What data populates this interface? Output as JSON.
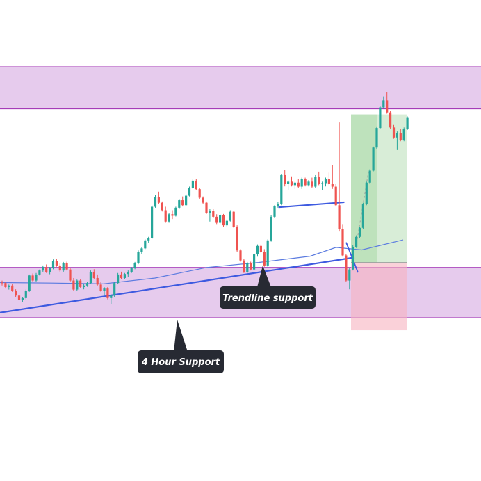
{
  "chart_data": {
    "type": "candlestick",
    "title": "",
    "xlabel": "",
    "ylabel": "",
    "ylim": [
      0,
      100
    ],
    "grid": false,
    "colors": {
      "up": "#26a69a",
      "down": "#ef5350",
      "zone_fill": "#e6cbed",
      "zone_border": "#9c27b0",
      "trendline": "#3d5ae0",
      "moving_average": "#5b7be0",
      "target_zone": "#a9d8a6",
      "stop_zone": "#f6b3bf",
      "callout_bg": "#272a33",
      "callout_text": "#ffffff"
    },
    "zones": [
      {
        "name": "resistance-zone",
        "from": 83.2,
        "to": 100.0
      },
      {
        "name": "support-zone",
        "from": 0.0,
        "to": 20.0
      }
    ],
    "annotations": [
      {
        "name": "trendline-support-label",
        "text": "Trendline support"
      },
      {
        "name": "four-hour-support-label",
        "text": "4 Hour Support"
      }
    ],
    "trendline": {
      "from": [
        0,
        2.0
      ],
      "to": [
        140,
        24.0
      ]
    },
    "short_trendline": {
      "from": [
        110,
        44.0
      ],
      "to": [
        136,
        46.0
      ]
    },
    "position": {
      "entry": 22.0,
      "target": 81.0,
      "stop": -5.0
    },
    "moving_average": [
      {
        "x": 0,
        "y": 14.0
      },
      {
        "x": 20,
        "y": 13.8
      },
      {
        "x": 40,
        "y": 13.5
      },
      {
        "x": 60,
        "y": 15.8
      },
      {
        "x": 80,
        "y": 20.0
      },
      {
        "x": 100,
        "y": 22.0
      },
      {
        "x": 120,
        "y": 24.5
      },
      {
        "x": 130,
        "y": 28.0
      },
      {
        "x": 140,
        "y": 27.0
      },
      {
        "x": 156,
        "y": 31.0
      }
    ],
    "candles": [
      [
        14,
        14.8,
        12.8,
        13.8
      ],
      [
        13.8,
        14.3,
        11.6,
        12.2
      ],
      [
        12.2,
        13.2,
        11.2,
        12.8
      ],
      [
        12.8,
        13.3,
        10.3,
        10.8
      ],
      [
        10.8,
        11.3,
        8.3,
        8.8
      ],
      [
        8.8,
        9.3,
        6.6,
        7.2
      ],
      [
        7.2,
        8.2,
        6.2,
        7.8
      ],
      [
        7.8,
        11.2,
        7.3,
        10.8
      ],
      [
        10.8,
        17.2,
        10.3,
        16.8
      ],
      [
        16.8,
        17.6,
        14.3,
        14.8
      ],
      [
        14.8,
        17.8,
        14.3,
        17.2
      ],
      [
        17.2,
        19.2,
        16.8,
        18.8
      ],
      [
        18.8,
        20.8,
        18.3,
        20.2
      ],
      [
        20.2,
        21.2,
        17.8,
        18.2
      ],
      [
        18.2,
        20.2,
        17.3,
        19.8
      ],
      [
        19.8,
        23.2,
        19.3,
        22.5
      ],
      [
        22.5,
        23.4,
        20.3,
        20.8
      ],
      [
        20.8,
        21.8,
        18.3,
        18.8
      ],
      [
        18.8,
        22.2,
        18.3,
        21.8
      ],
      [
        21.8,
        22.3,
        18.8,
        19.2
      ],
      [
        19.2,
        19.8,
        14.3,
        14.8
      ],
      [
        14.8,
        15.8,
        10.8,
        11.2
      ],
      [
        11.2,
        15.2,
        10.8,
        14.8
      ],
      [
        14.8,
        15.3,
        11.8,
        12.2
      ],
      [
        12.2,
        13.3,
        11.3,
        12.8
      ],
      [
        12.8,
        14.2,
        12.3,
        13.8
      ],
      [
        13.8,
        18.8,
        13.3,
        18.2
      ],
      [
        18.2,
        19.3,
        15.3,
        15.8
      ],
      [
        15.8,
        17.2,
        12.8,
        13.2
      ],
      [
        13.2,
        14.2,
        10.3,
        10.8
      ],
      [
        10.8,
        12.2,
        8.8,
        11.6
      ],
      [
        11.6,
        12.2,
        7.3,
        7.8
      ],
      [
        7.8,
        9.2,
        5.3,
        8.8
      ],
      [
        8.8,
        14.2,
        8.3,
        13.8
      ],
      [
        13.8,
        17.8,
        13.3,
        17.2
      ],
      [
        17.2,
        18.3,
        15.3,
        15.8
      ],
      [
        15.8,
        17.8,
        15.3,
        17.4
      ],
      [
        17.4,
        18.8,
        16.3,
        18.2
      ],
      [
        18.2,
        20.2,
        17.8,
        19.8
      ],
      [
        19.8,
        22.2,
        19.3,
        21.8
      ],
      [
        21.8,
        26.8,
        21.3,
        26.2
      ],
      [
        26.2,
        28.2,
        25.3,
        27.6
      ],
      [
        27.6,
        31.2,
        27.3,
        30.8
      ],
      [
        30.8,
        32.2,
        29.8,
        31.6
      ],
      [
        31.6,
        44.8,
        31.3,
        44.2
      ],
      [
        44.2,
        48.8,
        43.8,
        48.2
      ],
      [
        48.2,
        50.2,
        45.3,
        45.8
      ],
      [
        45.8,
        46.3,
        42.3,
        42.8
      ],
      [
        42.8,
        44.2,
        37.8,
        38.3
      ],
      [
        38.3,
        41.8,
        37.8,
        41.2
      ],
      [
        41.2,
        42.8,
        39.3,
        40.6
      ],
      [
        40.6,
        44.2,
        40.3,
        43.8
      ],
      [
        43.8,
        47.2,
        43.3,
        46.8
      ],
      [
        46.8,
        48.3,
        44.3,
        44.8
      ],
      [
        44.8,
        49.2,
        44.3,
        48.6
      ],
      [
        48.6,
        52.2,
        48.3,
        51.8
      ],
      [
        51.8,
        55.2,
        51.3,
        54.6
      ],
      [
        54.6,
        55.3,
        50.8,
        51.2
      ],
      [
        51.2,
        51.8,
        47.3,
        47.8
      ],
      [
        47.8,
        48.3,
        45.3,
        45.8
      ],
      [
        45.8,
        46.3,
        41.3,
        41.8
      ],
      [
        41.8,
        43.2,
        38.3,
        42.6
      ],
      [
        42.6,
        43.3,
        39.8,
        40.2
      ],
      [
        40.2,
        41.2,
        37.3,
        37.8
      ],
      [
        37.8,
        41.2,
        37.3,
        40.8
      ],
      [
        40.8,
        41.3,
        36.3,
        36.8
      ],
      [
        36.8,
        39.2,
        36.3,
        38.6
      ],
      [
        38.6,
        42.8,
        38.3,
        42.2
      ],
      [
        42.2,
        42.6,
        35.8,
        36.2
      ],
      [
        36.2,
        36.8,
        26.3,
        26.8
      ],
      [
        26.8,
        27.3,
        22.3,
        22.8
      ],
      [
        22.8,
        23.3,
        17.8,
        18.2
      ],
      [
        18.2,
        22.2,
        17.8,
        21.8
      ],
      [
        21.8,
        22.3,
        18.8,
        19.2
      ],
      [
        19.2,
        25.6,
        18.8,
        25.2
      ],
      [
        25.2,
        29.2,
        24.3,
        28.6
      ],
      [
        28.6,
        29.2,
        25.8,
        26.2
      ],
      [
        26.2,
        27.3,
        20.3,
        20.8
      ],
      [
        20.8,
        31.2,
        20.3,
        30.8
      ],
      [
        30.8,
        40.8,
        30.3,
        40.2
      ],
      [
        40.2,
        44.8,
        39.8,
        44.6
      ],
      [
        44.6,
        46.2,
        43.8,
        45.2
      ],
      [
        45.2,
        57.2,
        44.8,
        56.8
      ],
      [
        56.8,
        58.8,
        52.3,
        53.2
      ],
      [
        53.2,
        54.8,
        50.8,
        54.2
      ],
      [
        54.2,
        56.3,
        52.3,
        52.8
      ],
      [
        52.8,
        54.2,
        51.3,
        53.8
      ],
      [
        53.8,
        55.2,
        51.8,
        52.2
      ],
      [
        52.2,
        55.8,
        51.3,
        55.2
      ],
      [
        55.2,
        55.8,
        52.3,
        52.8
      ],
      [
        52.8,
        54.8,
        52.3,
        54.2
      ],
      [
        54.2,
        55.8,
        51.8,
        52.2
      ],
      [
        52.2,
        56.8,
        51.8,
        56.2
      ],
      [
        56.2,
        58.2,
        52.8,
        53.2
      ],
      [
        53.2,
        54.2,
        50.8,
        53.6
      ],
      [
        53.6,
        55.8,
        52.3,
        55.2
      ],
      [
        55.2,
        57.8,
        52.8,
        53.2
      ],
      [
        53.2,
        60.8,
        51.3,
        52.2
      ],
      [
        52.2,
        53.2,
        44.3,
        44.8
      ],
      [
        44.8,
        77.8,
        34.3,
        35.2
      ],
      [
        35.2,
        37.3,
        24.3,
        24.8
      ],
      [
        24.8,
        25.3,
        14.3,
        14.8
      ],
      [
        14.8,
        19.8,
        11.3,
        19.2
      ],
      [
        19.2,
        28.8,
        18.8,
        28.2
      ],
      [
        28.2,
        32.8,
        27.8,
        32.2
      ],
      [
        32.2,
        36.2,
        31.8,
        35.8
      ],
      [
        35.8,
        45.8,
        35.3,
        45.2
      ],
      [
        45.2,
        54.2,
        44.8,
        53.8
      ],
      [
        53.8,
        59.2,
        53.3,
        58.6
      ],
      [
        58.6,
        68.2,
        58.3,
        67.8
      ],
      [
        67.8,
        76.2,
        67.3,
        75.6
      ],
      [
        75.6,
        84.2,
        75.3,
        83.8
      ],
      [
        83.8,
        88.2,
        83.3,
        86.6
      ],
      [
        86.6,
        89.8,
        81.3,
        81.8
      ],
      [
        81.8,
        82.3,
        75.3,
        75.8
      ],
      [
        75.8,
        76.8,
        71.3,
        71.8
      ],
      [
        71.8,
        74.2,
        66.8,
        73.6
      ],
      [
        73.6,
        75.2,
        70.3,
        70.8
      ],
      [
        70.8,
        75.8,
        70.3,
        75.2
      ],
      [
        75.2,
        80.2,
        74.8,
        79.6
      ]
    ]
  }
}
